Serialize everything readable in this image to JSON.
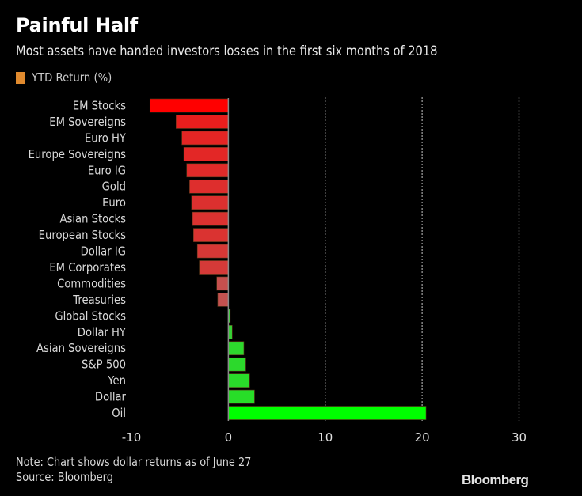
{
  "chart_data": {
    "type": "bar",
    "orientation": "horizontal",
    "title": "Painful Half",
    "subtitle": "Most assets have handed investors losses in the first six months of 2018",
    "legend": [
      {
        "label": "YTD Return (%)",
        "color": "#e08a2e"
      }
    ],
    "legend_position": "top-left",
    "categories": [
      "EM Stocks",
      "EM Sovereigns",
      "Euro HY",
      "Europe Sovereigns",
      "Euro IG",
      "Gold",
      "Euro",
      "Asian Stocks",
      "European Stocks",
      "Dollar IG",
      "EM Corporates",
      "Commodities",
      "Treasuries",
      "Global Stocks",
      "Dollar HY",
      "Asian Sovereigns",
      "S&P 500",
      "Yen",
      "Dollar",
      "Oil"
    ],
    "series": [
      {
        "name": "YTD Return (%)",
        "values": [
          -8.1,
          -5.4,
          -4.8,
          -4.6,
          -4.3,
          -4.0,
          -3.8,
          -3.7,
          -3.6,
          -3.2,
          -3.0,
          -1.2,
          -1.1,
          0.2,
          0.4,
          1.6,
          1.8,
          2.2,
          2.7,
          20.4
        ]
      }
    ],
    "xlabel": "",
    "ylabel": "",
    "xlim": [
      -10,
      30
    ],
    "xticks": [
      -10,
      0,
      10,
      20,
      30
    ],
    "xtick_labels": [
      "-10",
      "0",
      "10",
      "20",
      "30"
    ],
    "gridlines": [
      10,
      20,
      30
    ],
    "grid": true,
    "colors": {
      "most_negative": "#ff0000",
      "near_zero_negative": "#b8625f",
      "near_zero_positive": "#3fc93f",
      "most_positive": "#00ff00",
      "axis": "#8a8a8a",
      "grid": "#9a9a9a"
    }
  },
  "footer": {
    "note": "Note: Chart shows dollar returns as of June 27",
    "source": "Source: Bloomberg",
    "brand": "Bloomberg"
  }
}
